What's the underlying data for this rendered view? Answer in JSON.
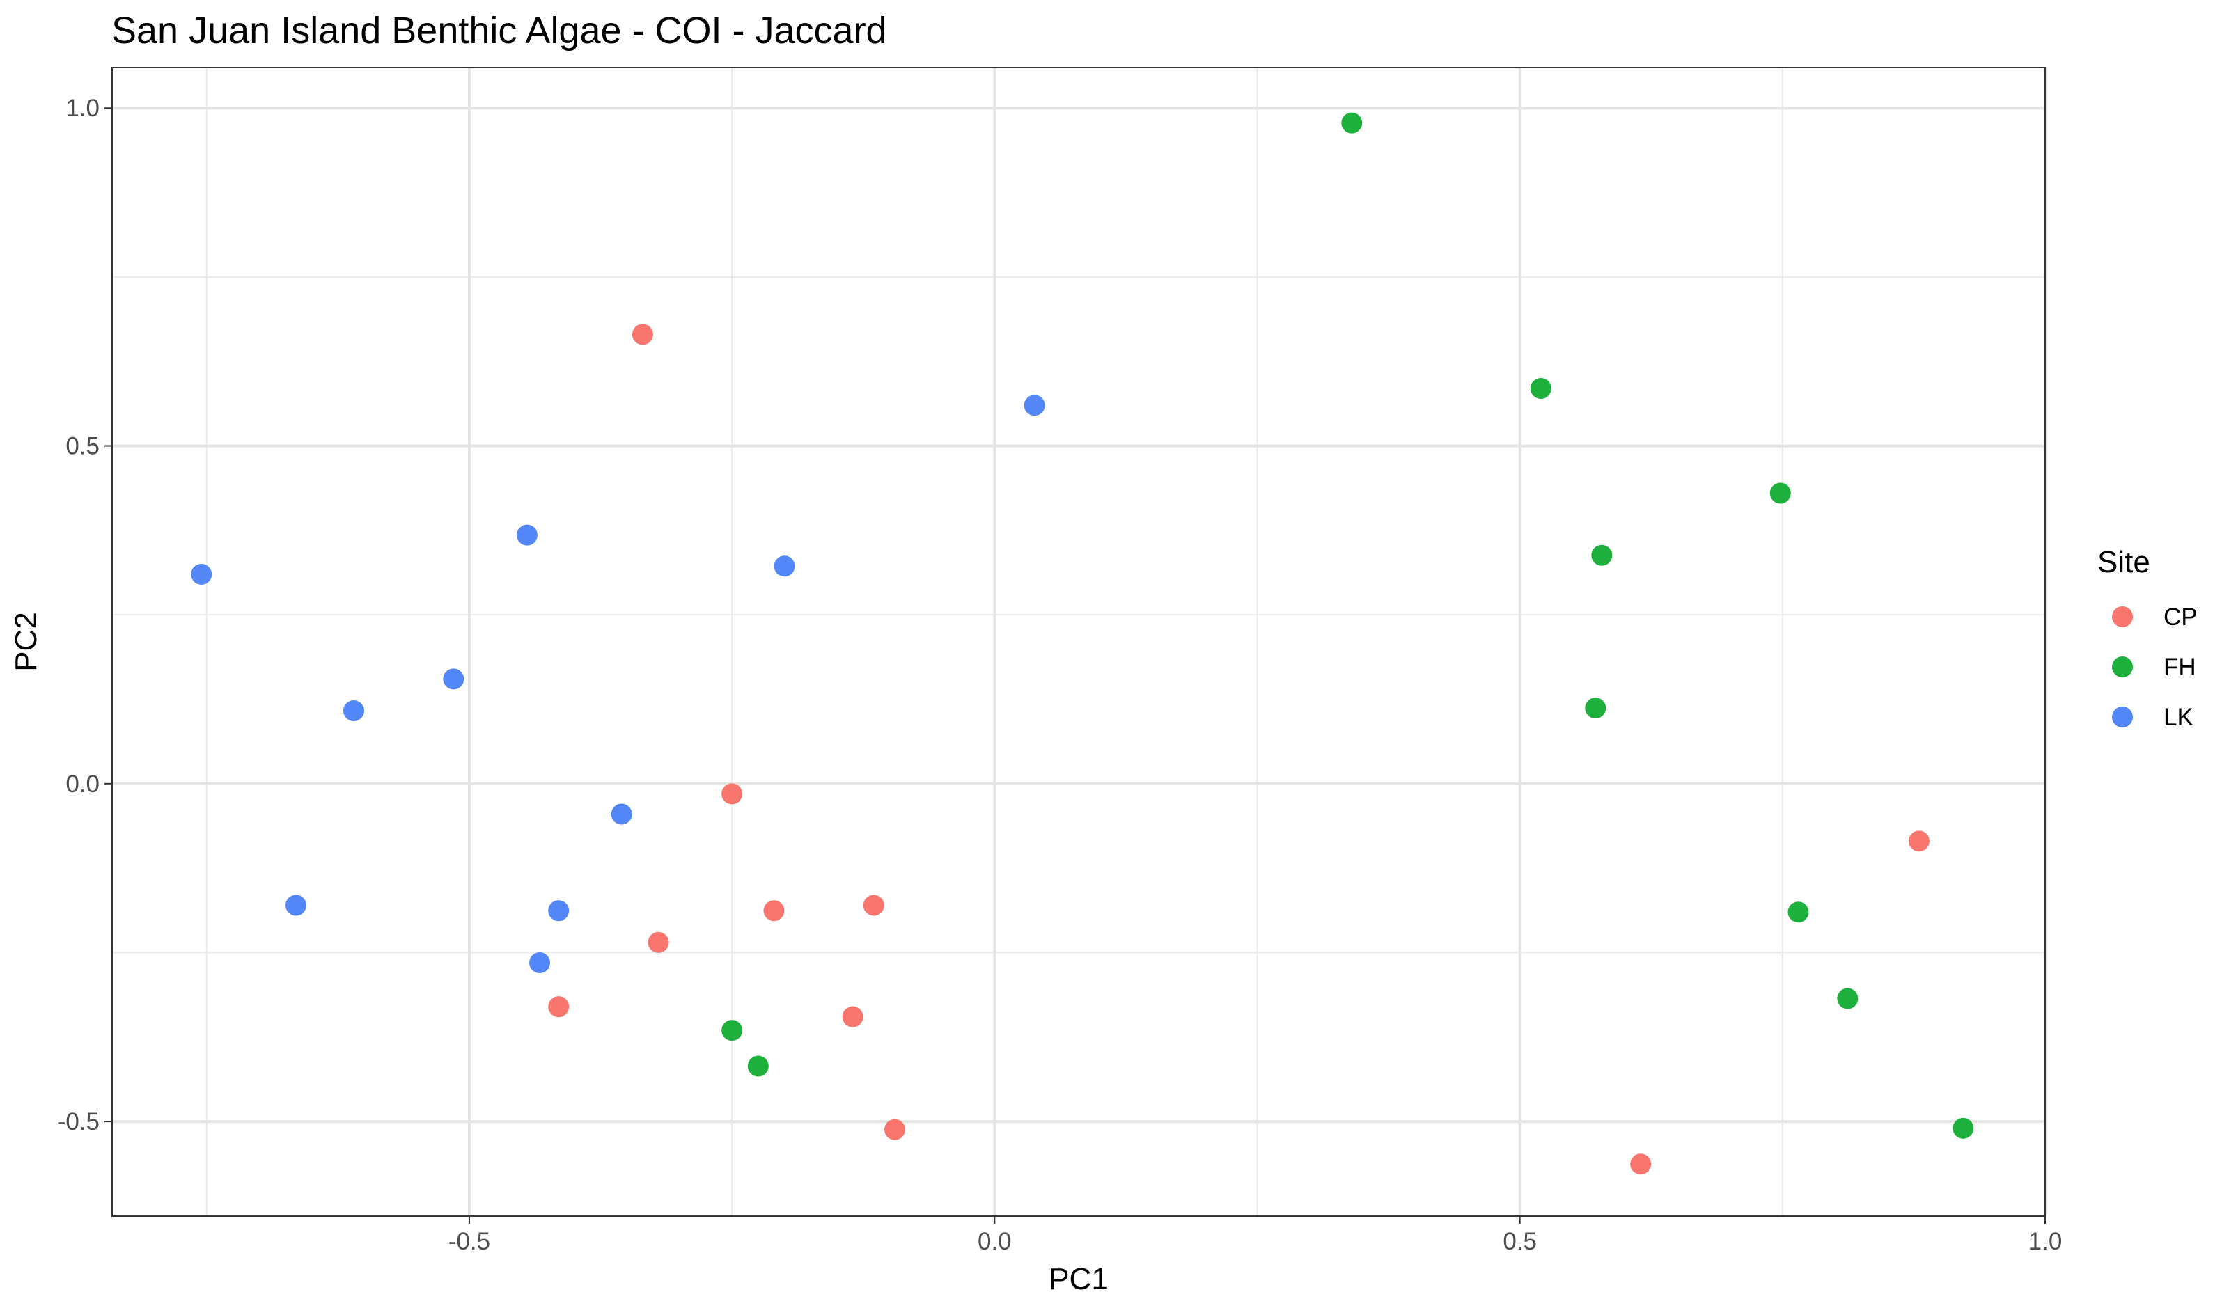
{
  "chart_data": {
    "type": "scatter",
    "title": "San Juan Island Benthic Algae - COI - Jaccard",
    "xlabel": "PC1",
    "ylabel": "PC2",
    "xlim": [
      -0.84,
      1.0
    ],
    "ylim": [
      -0.64,
      1.06
    ],
    "x_ticks": [
      -0.5,
      0.0,
      0.5,
      1.0
    ],
    "x_tick_labels": [
      "-0.5",
      "0.0",
      "0.5",
      "1.0"
    ],
    "y_ticks": [
      -0.5,
      0.0,
      0.5,
      1.0
    ],
    "y_tick_labels": [
      "-0.5",
      "0.0",
      "0.5",
      "1.0"
    ],
    "grid": true,
    "legend": {
      "title": "Site",
      "position": "right"
    },
    "series": [
      {
        "name": "CP",
        "color": "#F8766D",
        "points": [
          {
            "x": -0.335,
            "y": 0.665
          },
          {
            "x": -0.25,
            "y": -0.015
          },
          {
            "x": -0.21,
            "y": -0.188
          },
          {
            "x": -0.115,
            "y": -0.18
          },
          {
            "x": -0.32,
            "y": -0.235
          },
          {
            "x": -0.415,
            "y": -0.33
          },
          {
            "x": -0.135,
            "y": -0.345
          },
          {
            "x": -0.095,
            "y": -0.512
          },
          {
            "x": 0.88,
            "y": -0.085
          },
          {
            "x": 0.615,
            "y": -0.563
          }
        ]
      },
      {
        "name": "FH",
        "color": "#1EB03C",
        "points": [
          {
            "x": 0.34,
            "y": 0.978
          },
          {
            "x": 0.52,
            "y": 0.585
          },
          {
            "x": 0.748,
            "y": 0.43
          },
          {
            "x": 0.578,
            "y": 0.338
          },
          {
            "x": 0.572,
            "y": 0.112
          },
          {
            "x": 0.765,
            "y": -0.19
          },
          {
            "x": 0.812,
            "y": -0.318
          },
          {
            "x": 0.922,
            "y": -0.51
          },
          {
            "x": -0.25,
            "y": -0.365
          },
          {
            "x": -0.225,
            "y": -0.418
          }
        ]
      },
      {
        "name": "LK",
        "color": "#5386F6",
        "points": [
          {
            "x": 0.038,
            "y": 0.56
          },
          {
            "x": -0.445,
            "y": 0.368
          },
          {
            "x": -0.2,
            "y": 0.322
          },
          {
            "x": -0.755,
            "y": 0.31
          },
          {
            "x": -0.515,
            "y": 0.155
          },
          {
            "x": -0.61,
            "y": 0.108
          },
          {
            "x": -0.355,
            "y": -0.045
          },
          {
            "x": -0.665,
            "y": -0.18
          },
          {
            "x": -0.415,
            "y": -0.188
          },
          {
            "x": -0.433,
            "y": -0.265
          }
        ]
      }
    ]
  }
}
